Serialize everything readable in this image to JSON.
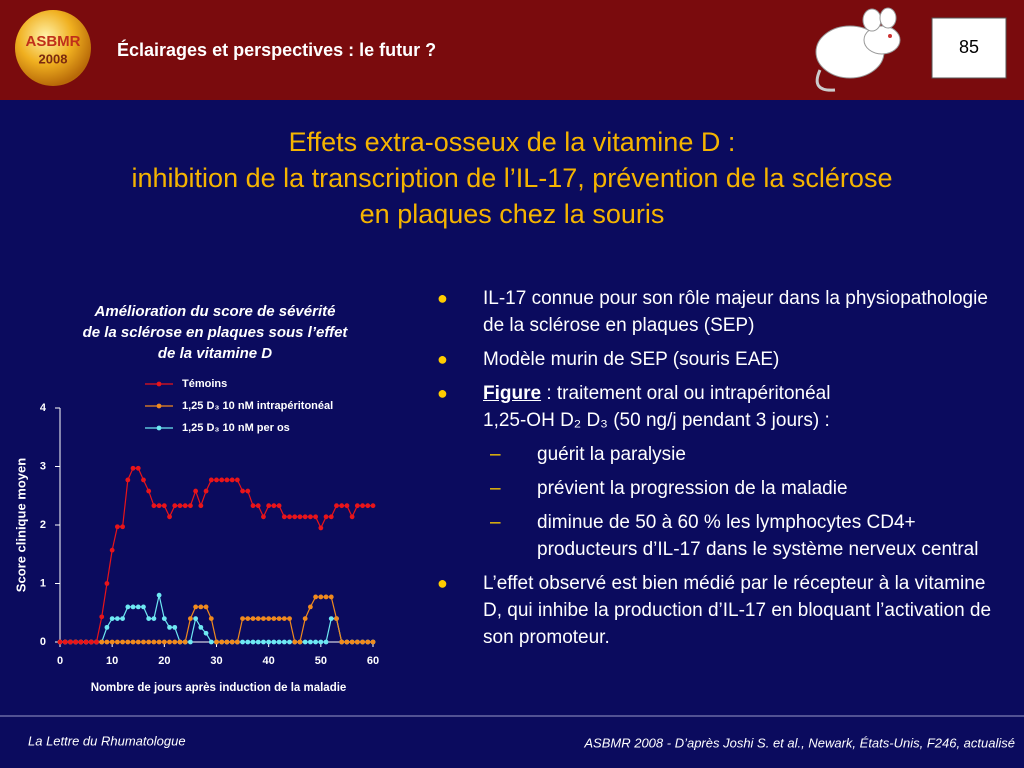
{
  "header": {
    "logo": [
      "ASBMR",
      "2008"
    ],
    "title": "Éclairages et perspectives : le futur ?",
    "page_number": "85"
  },
  "slide_title": [
    "Effets extra-osseux de la vitamine D :",
    "inhibition de la transcription de l’IL-17, prévention de la sclérose",
    "en plaques chez la souris"
  ],
  "chart_data": {
    "type": "line",
    "title": [
      "Amélioration du score de sévérité",
      "de la sclérose en plaques sous l’effet",
      "de la vitamine D"
    ],
    "x_label": "Nombre de jours après induction de la maladie",
    "y_label": "Score clinique moyen",
    "xlim": [
      0,
      60
    ],
    "xticks": [
      0,
      10,
      20,
      30,
      40,
      50,
      60
    ],
    "ylim": [
      0,
      4
    ],
    "yticks": [
      0,
      1,
      2,
      3,
      4
    ],
    "legend": "top-left",
    "x": [
      0,
      1,
      2,
      3,
      4,
      5,
      6,
      7,
      8,
      9,
      10,
      11,
      12,
      13,
      14,
      15,
      16,
      17,
      18,
      19,
      20,
      21,
      22,
      23,
      24,
      25,
      26,
      27,
      28,
      29,
      30,
      31,
      32,
      33,
      34,
      35,
      36,
      37,
      38,
      39,
      40,
      41,
      42,
      43,
      44,
      45,
      46,
      47,
      48,
      49,
      50,
      51,
      52,
      53,
      54,
      55,
      56,
      57,
      58,
      59,
      60
    ],
    "series": [
      {
        "name": "1,25 D₃ 10 nM per os",
        "color": "#6ee8f2",
        "values": [
          0,
          0,
          0,
          0,
          0,
          0,
          0,
          0,
          0,
          0.25,
          0.4,
          0.4,
          0.4,
          0.6,
          0.6,
          0.6,
          0.6,
          0.4,
          0.4,
          0.8,
          0.4,
          0.25,
          0.25,
          0,
          0,
          0,
          0.4,
          0.25,
          0.15,
          0,
          0,
          0,
          0,
          0,
          0,
          0,
          0,
          0,
          0,
          0,
          0,
          0,
          0,
          0,
          0,
          0,
          0,
          0,
          0,
          0,
          0,
          0,
          0.4,
          0.4,
          0,
          0,
          0,
          0,
          0,
          0,
          0
        ]
      },
      {
        "name": "1,25 D₃ 10 nM intrapéritonéal",
        "color": "#f08a1e",
        "values": [
          0,
          0,
          0,
          0,
          0,
          0,
          0,
          0,
          0,
          0,
          0,
          0,
          0,
          0,
          0,
          0,
          0,
          0,
          0,
          0,
          0,
          0,
          0,
          0,
          0,
          0.4,
          0.6,
          0.6,
          0.6,
          0.4,
          0,
          0,
          0,
          0,
          0,
          0.4,
          0.4,
          0.4,
          0.4,
          0.4,
          0.4,
          0.4,
          0.4,
          0.4,
          0.4,
          0,
          0,
          0.4,
          0.6,
          0.77,
          0.77,
          0.77,
          0.77,
          0.4,
          0,
          0,
          0,
          0,
          0,
          0,
          0
        ]
      },
      {
        "name": "Témoins",
        "color": "#e8141a",
        "values": [
          0,
          0,
          0,
          0,
          0,
          0,
          0,
          0,
          0.43,
          1,
          1.57,
          1.97,
          1.97,
          2.77,
          2.97,
          2.97,
          2.77,
          2.58,
          2.33,
          2.33,
          2.33,
          2.14,
          2.33,
          2.33,
          2.33,
          2.33,
          2.58,
          2.33,
          2.58,
          2.77,
          2.77,
          2.77,
          2.77,
          2.77,
          2.77,
          2.58,
          2.58,
          2.33,
          2.33,
          2.14,
          2.33,
          2.33,
          2.33,
          2.14,
          2.14,
          2.14,
          2.14,
          2.14,
          2.14,
          2.14,
          1.95,
          2.14,
          2.14,
          2.33,
          2.33,
          2.33,
          2.14,
          2.33,
          2.33,
          2.33,
          2.33
        ]
      }
    ]
  },
  "bullets": [
    {
      "level": 1,
      "text": "IL-17 connue pour son rôle majeur dans la physiopathologie de la sclérose en plaques (SEP)"
    },
    {
      "level": 1,
      "text": "Modèle murin de SEP (souris EAE)"
    },
    {
      "level": 1,
      "emphasis": "Figure",
      "text": " : traitement oral ou intrapéritonéal\n1,25-OH D₂ D₃  (50 ng/j pendant 3 jours) :"
    },
    {
      "level": 2,
      "text": "guérit la paralysie"
    },
    {
      "level": 2,
      "text": "prévient la progression de la maladie"
    },
    {
      "level": 2,
      "text": "diminue de 50 à 60 % les lymphocytes CD4+ producteurs d’IL-17 dans le système nerveux central"
    },
    {
      "level": 1,
      "text": "L’effet observé est bien médié par le récepteur à la vitamine D, qui inhibe la production d’IL-17 en bloquant l’activation de son promoteur."
    }
  ],
  "footer": {
    "left": "La Lettre du Rhumatologue",
    "right": "ASBMR 2008 - D’après Joshi S. et al., Newark, États-Unis, F246, actualisé"
  }
}
